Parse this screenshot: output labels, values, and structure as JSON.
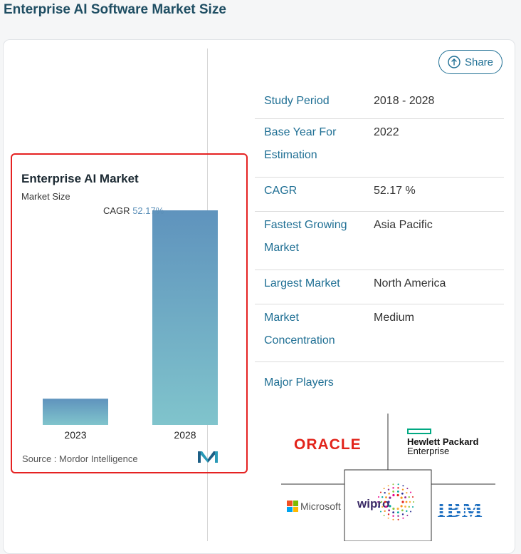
{
  "page": {
    "title": "Enterprise AI Software Market Size"
  },
  "share": {
    "label": "Share"
  },
  "chart": {
    "title": "Enterprise AI Market",
    "subtitle": "Market Size",
    "cagr_label": "CAGR",
    "cagr_value": "52.17%",
    "source": "Source :  Mordor Intelligence"
  },
  "chart_data": {
    "type": "bar",
    "title": "Enterprise AI Market",
    "ylabel": "Market Size",
    "categories": [
      "2023",
      "2028"
    ],
    "values": [
      1,
      8.17
    ],
    "annotation": "CAGR 52.17%"
  },
  "details": [
    {
      "key": "Study Period",
      "value": "2018 - 2028"
    },
    {
      "key": "Base Year For Estimation",
      "value": "2022"
    },
    {
      "key": "CAGR",
      "value": "52.17 %"
    },
    {
      "key": "Fastest Growing Market",
      "value": "Asia Pacific"
    },
    {
      "key": "Largest Market",
      "value": "North America"
    },
    {
      "key": "Market Concentration",
      "value": "Medium"
    }
  ],
  "players": {
    "label": "Major Players",
    "oracle": "ORACLE",
    "hpe_line1": "Hewlett Packard",
    "hpe_line2": "Enterprise",
    "microsoft": "Microsoft",
    "wipro": "wipro",
    "ibm": "IBM"
  },
  "colors": {
    "accent": "#1f6f94",
    "highlight_box": "#e52222",
    "bar_top": "#5f93bd",
    "bar_bottom": "#80c4cc"
  }
}
